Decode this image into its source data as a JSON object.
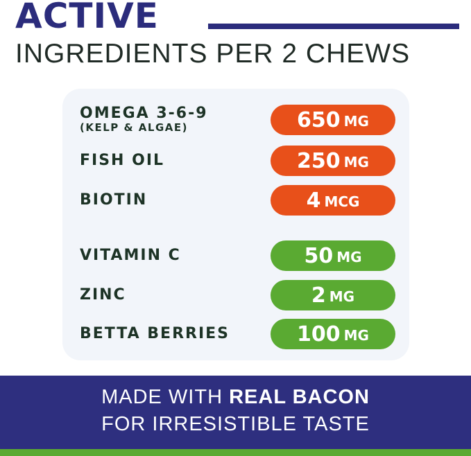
{
  "header": {
    "title": "ACTIVE",
    "subtitle": "INGREDIENTS PER 2 CHEWS"
  },
  "groups": [
    {
      "color": "#e8501a",
      "items": [
        {
          "name": "OMEGA 3-6-9",
          "note": "(KELP & ALGAE)",
          "amount": 650,
          "unit": "MG"
        },
        {
          "name": "FISH OIL",
          "amount": 250,
          "unit": "MG"
        },
        {
          "name": "BIOTIN",
          "amount": 4,
          "unit": "MCG"
        }
      ]
    },
    {
      "color": "#5aaa32",
      "items": [
        {
          "name": "VITAMIN C",
          "amount": 50,
          "unit": "MG"
        },
        {
          "name": "ZINC",
          "amount": 2,
          "unit": "MG"
        },
        {
          "name": "BETTA BERRIES",
          "amount": 100,
          "unit": "MG"
        }
      ]
    }
  ],
  "footer": {
    "line1_start": "MADE WITH ",
    "line1_bold": "REAL BACON",
    "line2": "FOR IRRESISTIBLE TASTE"
  }
}
